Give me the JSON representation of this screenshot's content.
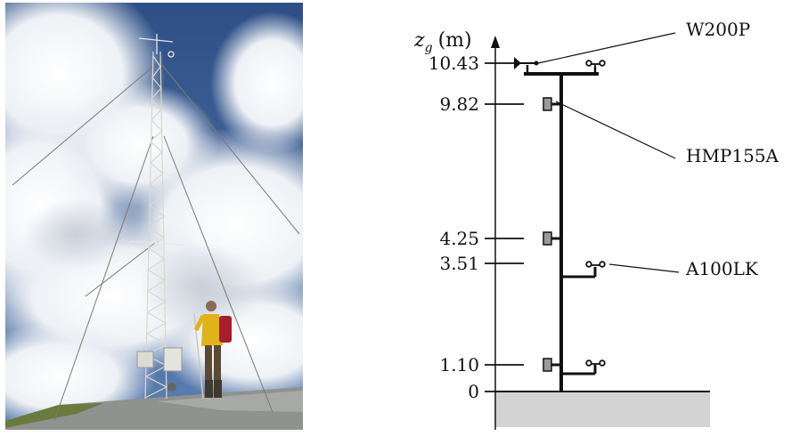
{
  "axis": {
    "symbol": "z",
    "subscript": "g",
    "unit": "(m)"
  },
  "heights": [
    "10.43",
    "9.82",
    "4.25",
    "3.51",
    "1.10",
    "0"
  ],
  "instruments": {
    "wind_vane": "W200P",
    "temp_humidity": "HMP155A",
    "anemometer": "A100LK"
  },
  "colors": {
    "mast": "#111111",
    "ground": "#d3d3d3",
    "sensor": "#9a9a9a",
    "sky": "#3a5f98"
  }
}
